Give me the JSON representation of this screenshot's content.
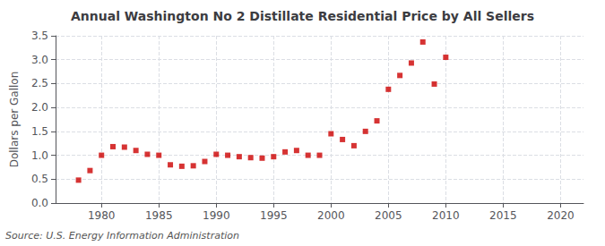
{
  "chart_data": {
    "type": "scatter",
    "title": "Annual Washington No 2 Distillate Residential Price by All Sellers",
    "ylabel": "Dollars per Gallon",
    "annotation": "Source: U.S. Energy Information Administration",
    "x": [
      1978,
      1979,
      1980,
      1981,
      1982,
      1983,
      1984,
      1985,
      1986,
      1987,
      1988,
      1989,
      1990,
      1991,
      1992,
      1993,
      1994,
      1995,
      1996,
      1997,
      1998,
      1999,
      2000,
      2001,
      2002,
      2003,
      2004,
      2005,
      2006,
      2007,
      2008,
      2009,
      2010
    ],
    "values": [
      0.48,
      0.68,
      1.0,
      1.18,
      1.17,
      1.1,
      1.02,
      1.0,
      0.8,
      0.77,
      0.78,
      0.87,
      1.02,
      1.0,
      0.97,
      0.95,
      0.94,
      0.97,
      1.07,
      1.1,
      1.0,
      1.0,
      1.45,
      1.33,
      1.2,
      1.5,
      1.72,
      2.38,
      2.67,
      2.93,
      3.37,
      2.49,
      3.05
    ],
    "color": "#cc0000",
    "marker": "square",
    "xlim": [
      1976,
      2022
    ],
    "ylim": [
      0.0,
      3.5
    ],
    "xticks": [
      1980,
      1985,
      1990,
      1995,
      2000,
      2005,
      2010,
      2015,
      2020
    ],
    "yticks": [
      {
        "value": 0.0,
        "label": "0.0"
      },
      0.5,
      {
        "value": 1.0,
        "label": "1.0"
      },
      1.5,
      {
        "value": 2.0,
        "label": "2.0"
      },
      2.5,
      {
        "value": 3.0,
        "label": "3.0"
      },
      3.5
    ],
    "grid": true
  }
}
